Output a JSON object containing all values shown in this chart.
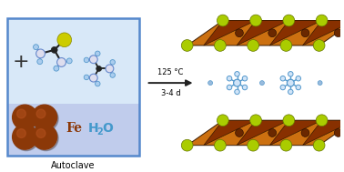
{
  "bg_color": "#ffffff",
  "autoclave_upper_color": "#d8e8f8",
  "autoclave_lower_color": "#c0ccec",
  "autoclave_border_color": "#5588cc",
  "autoclave_label": "Autoclave",
  "fe_color": "#8B3808",
  "fe_label_color": "#8B3808",
  "h2o_label_color": "#4499cc",
  "arrow_color": "#222222",
  "arrow_text1": "125 °C",
  "arrow_text2": "3-4 d",
  "layer_orange_light": "#cc7010",
  "layer_orange_dark": "#883000",
  "sulfur_color": "#aacc00",
  "sulfur_edge": "#667700",
  "iron_inner_color": "#6a2800",
  "nh3_line_color": "#5599cc",
  "nh3_center_color": "#d0e4f8",
  "nh3_tip_color": "#5599cc",
  "nh3_dot_color": "#99bbdd",
  "plus_color": "#333333",
  "mol_carbon": "#222222",
  "mol_nitrogen": "#ddddee",
  "mol_nitrogen_edge": "#6688cc",
  "mol_hydrogen": "#aaccee",
  "mol_hydrogen_edge": "#5599cc",
  "mol_sulfur": "#cccc00",
  "mol_sulfur_edge": "#888800"
}
